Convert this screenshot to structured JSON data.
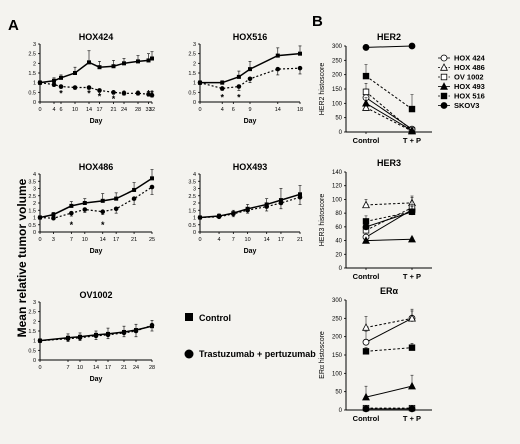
{
  "panels": {
    "a": "A",
    "b": "B"
  },
  "ylabel_a": "Mean relative tumor volume",
  "legend_a": [
    {
      "label": "Control",
      "marker": "square"
    },
    {
      "label": "Trastuzumab + pertuzumab",
      "marker": "circle"
    }
  ],
  "chart_data": [
    {
      "type": "line",
      "title": "HOX424",
      "xlabel": "Day",
      "ylabel": "",
      "x": [
        0,
        4,
        6,
        10,
        14,
        17,
        21,
        24,
        28,
        31,
        32
      ],
      "xticks": [
        0,
        4,
        6,
        10,
        14,
        17,
        21,
        24,
        28,
        31,
        32
      ],
      "yticks": [
        0,
        0.5,
        1.0,
        1.5,
        2.0,
        2.5,
        3.0
      ],
      "ylim": [
        0,
        3.0
      ],
      "series": [
        {
          "name": "Control",
          "values": [
            1.0,
            1.1,
            1.25,
            1.5,
            2.05,
            1.8,
            1.85,
            2.0,
            2.1,
            2.15,
            2.25
          ],
          "err": [
            0.1,
            0.15,
            0.15,
            0.3,
            0.6,
            0.3,
            0.3,
            0.25,
            0.3,
            0.35,
            0.35
          ]
        },
        {
          "name": "Trastuzumab + pertuzumab",
          "values": [
            1.0,
            0.9,
            0.8,
            0.75,
            0.75,
            0.6,
            0.5,
            0.45,
            0.45,
            0.4,
            0.35
          ],
          "err": [
            0.1,
            0.1,
            0.1,
            0.1,
            0.1,
            0.1,
            0.1,
            0.1,
            0.1,
            0.1,
            0.1
          ]
        }
      ],
      "annotations": [
        {
          "x": 6,
          "y": 0.6,
          "text": "*"
        },
        {
          "x": 14,
          "y": 0.6,
          "text": "*"
        },
        {
          "x": 17,
          "y": 0.45,
          "text": "*"
        },
        {
          "x": 21,
          "y": 0.32,
          "text": "*"
        },
        {
          "x": 24,
          "y": 0.6,
          "text": "*"
        },
        {
          "x": 28,
          "y": 0.6,
          "text": "*"
        },
        {
          "x": 31,
          "y": 0.6,
          "text": "*"
        },
        {
          "x": 32,
          "y": 0.6,
          "text": "*"
        }
      ]
    },
    {
      "type": "line",
      "title": "HOX516",
      "xlabel": "Day",
      "ylabel": "",
      "x": [
        0,
        4,
        7,
        9,
        14,
        18
      ],
      "xticks": [
        0,
        4,
        6,
        9,
        14,
        18
      ],
      "yticks": [
        0,
        0.5,
        1.0,
        1.5,
        2.0,
        2.5,
        3.0
      ],
      "ylim": [
        0,
        3.0
      ],
      "series": [
        {
          "name": "Control",
          "values": [
            1.0,
            1.0,
            1.3,
            1.7,
            2.4,
            2.5
          ],
          "err": [
            0.1,
            0.1,
            0.3,
            0.4,
            0.4,
            0.4
          ]
        },
        {
          "name": "Trastuzumab + pertuzumab",
          "values": [
            1.0,
            0.7,
            0.8,
            1.2,
            1.7,
            1.75
          ],
          "err": [
            0.1,
            0.1,
            0.2,
            0.2,
            0.3,
            0.3
          ]
        }
      ],
      "annotations": [
        {
          "x": 4,
          "y": 0.4,
          "text": "*"
        },
        {
          "x": 7,
          "y": 0.4,
          "text": "*"
        }
      ]
    },
    {
      "type": "line",
      "title": "HOX486",
      "xlabel": "Day",
      "ylabel": "",
      "x": [
        0,
        3,
        7,
        10,
        14,
        17,
        21,
        25
      ],
      "xticks": [
        0,
        3,
        7,
        10,
        14,
        17,
        21,
        25
      ],
      "yticks": [
        0,
        0.5,
        1.0,
        1.5,
        2.0,
        2.5,
        3.0,
        3.5,
        4.0
      ],
      "ylim": [
        0,
        4.0
      ],
      "series": [
        {
          "name": "Control",
          "values": [
            1.0,
            1.2,
            1.8,
            2.0,
            2.15,
            2.3,
            2.9,
            3.7
          ],
          "err": [
            0.1,
            0.15,
            0.3,
            0.3,
            0.5,
            0.4,
            0.5,
            0.6
          ]
        },
        {
          "name": "Trastuzumab + pertuzumab",
          "values": [
            1.0,
            0.95,
            1.3,
            1.55,
            1.4,
            1.6,
            2.3,
            3.1
          ],
          "err": [
            0.1,
            0.1,
            0.2,
            0.2,
            0.2,
            0.3,
            0.4,
            0.5
          ]
        }
      ],
      "annotations": [
        {
          "x": 7,
          "y": 0.7,
          "text": "*"
        },
        {
          "x": 14,
          "y": 0.7,
          "text": "*"
        }
      ]
    },
    {
      "type": "line",
      "title": "HOX493",
      "xlabel": "Day",
      "ylabel": "",
      "x": [
        0,
        4,
        7,
        10,
        14,
        17,
        21
      ],
      "xticks": [
        0,
        4,
        7,
        10,
        14,
        17,
        21
      ],
      "yticks": [
        0,
        0.5,
        1.0,
        1.5,
        2.0,
        2.5,
        3.0,
        3.5,
        4.0
      ],
      "ylim": [
        0,
        4.0
      ],
      "series": [
        {
          "name": "Control",
          "values": [
            1.0,
            1.1,
            1.3,
            1.6,
            1.9,
            2.2,
            2.6
          ],
          "err": [
            0.1,
            0.15,
            0.2,
            0.3,
            0.4,
            0.8,
            0.6
          ]
        },
        {
          "name": "Trastuzumab + pertuzumab",
          "values": [
            1.0,
            1.05,
            1.25,
            1.5,
            1.75,
            2.0,
            2.4
          ],
          "err": [
            0.1,
            0.1,
            0.2,
            0.2,
            0.3,
            0.4,
            0.5
          ]
        }
      ],
      "annotations": []
    },
    {
      "type": "line",
      "title": "OV1002",
      "xlabel": "Day",
      "ylabel": "",
      "x": [
        0,
        7,
        10,
        14,
        17,
        21,
        24,
        28
      ],
      "xticks": [
        0,
        7,
        10,
        14,
        17,
        21,
        24,
        28
      ],
      "yticks": [
        0,
        0.5,
        1.0,
        1.5,
        2.0,
        2.5,
        3.0
      ],
      "ylim": [
        0,
        3.0
      ],
      "series": [
        {
          "name": "Control",
          "values": [
            1.0,
            1.15,
            1.2,
            1.3,
            1.35,
            1.45,
            1.55,
            1.75
          ],
          "err": [
            0.1,
            0.2,
            0.2,
            0.2,
            0.3,
            0.3,
            0.3,
            0.3
          ]
        },
        {
          "name": "Trastuzumab + pertuzumab",
          "values": [
            1.0,
            1.1,
            1.15,
            1.25,
            1.3,
            1.4,
            1.5,
            1.8
          ],
          "err": [
            0.1,
            0.15,
            0.15,
            0.2,
            0.2,
            0.2,
            0.3,
            0.3
          ]
        }
      ],
      "annotations": []
    },
    {
      "type": "line",
      "title": "HER2",
      "ylabel": "HER2 histoscore",
      "categories": [
        "Control",
        "T + P"
      ],
      "yticks": [
        0,
        50,
        100,
        150,
        200,
        250,
        300
      ],
      "ylim": [
        0,
        300
      ],
      "series": [
        {
          "name": "HOX 424",
          "marker": "open-circle",
          "line": "solid",
          "values": [
            120,
            10
          ],
          "err": [
            30,
            8
          ]
        },
        {
          "name": "HOX 486",
          "marker": "open-triangle",
          "line": "dashed",
          "values": [
            85,
            3
          ],
          "err": [
            20,
            3
          ]
        },
        {
          "name": "OV 1002",
          "marker": "open-square",
          "line": "dashed",
          "values": [
            140,
            5
          ],
          "err": [
            30,
            5
          ]
        },
        {
          "name": "HOX 493",
          "marker": "filled-triangle",
          "line": "solid",
          "values": [
            100,
            5
          ],
          "err": [
            20,
            3
          ]
        },
        {
          "name": "HOX 516",
          "marker": "filled-square",
          "line": "dashed",
          "values": [
            195,
            80
          ],
          "err": [
            40,
            50
          ]
        },
        {
          "name": "SKOV3",
          "marker": "filled-circle",
          "line": "solid",
          "values": [
            295,
            300
          ],
          "err": [
            10,
            5
          ]
        }
      ]
    },
    {
      "type": "line",
      "title": "HER3",
      "ylabel": "HER3 histoscore",
      "categories": [
        "Control",
        "T + P"
      ],
      "yticks": [
        0,
        20,
        40,
        60,
        80,
        100,
        120,
        140
      ],
      "ylim": [
        0,
        140
      ],
      "series": [
        {
          "name": "HOX 424",
          "marker": "open-circle",
          "line": "solid",
          "values": [
            45,
            85
          ],
          "err": [
            10,
            10
          ]
        },
        {
          "name": "HOX 486",
          "marker": "open-triangle",
          "line": "dashed",
          "values": [
            92,
            95
          ],
          "err": [
            8,
            10
          ]
        },
        {
          "name": "OV 1002",
          "marker": "open-square",
          "line": "dashed",
          "values": [
            55,
            88
          ],
          "err": [
            10,
            15
          ]
        },
        {
          "name": "HOX 493",
          "marker": "filled-triangle",
          "line": "solid",
          "values": [
            40,
            42
          ],
          "err": [
            3,
            3
          ]
        },
        {
          "name": "HOX 516",
          "marker": "filled-square",
          "line": "dashed",
          "values": [
            68,
            82
          ],
          "err": [
            8,
            8
          ]
        },
        {
          "name": "SKOV3",
          "marker": "filled-circle",
          "line": "solid",
          "values": [
            60,
            82
          ],
          "err": [
            10,
            10
          ]
        }
      ]
    },
    {
      "type": "line",
      "title": "ERα",
      "ylabel": "ERα histoscore",
      "categories": [
        "Control",
        "T + P"
      ],
      "yticks": [
        0,
        50,
        100,
        150,
        200,
        250,
        300
      ],
      "ylim": [
        0,
        300
      ],
      "series": [
        {
          "name": "HOX 424",
          "marker": "open-circle",
          "line": "solid",
          "values": [
            185,
            250
          ],
          "err": [
            30,
            20
          ]
        },
        {
          "name": "HOX 486",
          "marker": "open-triangle",
          "line": "dashed",
          "values": [
            225,
            250
          ],
          "err": [
            30,
            25
          ]
        },
        {
          "name": "OV 1002",
          "marker": "open-square",
          "line": "dashed",
          "values": [
            5,
            5
          ],
          "err": [
            3,
            3
          ]
        },
        {
          "name": "HOX 493",
          "marker": "filled-triangle",
          "line": "solid",
          "values": [
            35,
            65
          ],
          "err": [
            30,
            30
          ]
        },
        {
          "name": "HOX 516",
          "marker": "filled-square",
          "line": "dashed",
          "values": [
            160,
            170
          ],
          "err": [
            10,
            12
          ]
        },
        {
          "name": "SKOV3",
          "marker": "filled-circle",
          "line": "solid",
          "values": [
            3,
            3
          ],
          "err": [
            2,
            2
          ]
        }
      ]
    }
  ]
}
